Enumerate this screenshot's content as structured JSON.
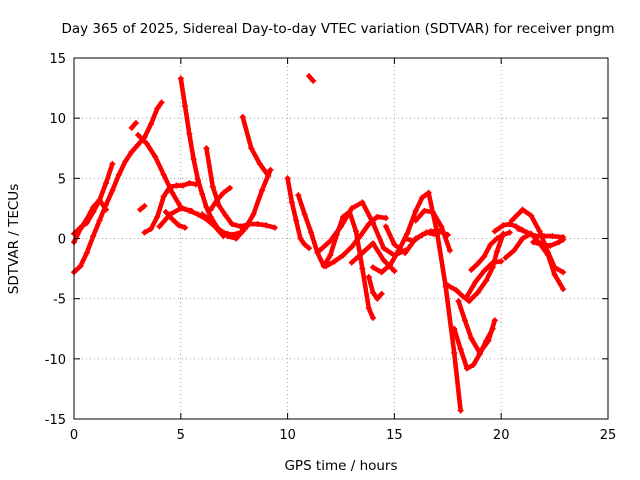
{
  "chart_data": {
    "type": "scatter",
    "title": "Day 365 of 2025, Sidereal Day-to-day VTEC variation (SDTVAR) for receiver pngm",
    "xlabel": "GPS time / hours",
    "ylabel": "SDTVAR / TECUs",
    "xlim": [
      0,
      25
    ],
    "ylim": [
      -15,
      15
    ],
    "xticks": [
      0,
      5,
      10,
      15,
      20,
      25
    ],
    "yticks": [
      -15,
      -10,
      -5,
      0,
      5,
      10,
      15
    ],
    "grid": true,
    "marker": "plus",
    "color": "#ff0000",
    "series": [
      {
        "x": [
          0.0,
          0.3,
          0.6,
          0.9,
          1.2,
          1.5,
          1.8,
          2.1,
          2.4,
          2.7,
          3.0,
          3.3,
          3.6,
          3.9,
          4.1
        ],
        "y": [
          -2.8,
          -2.3,
          -1.2,
          0.2,
          1.5,
          2.8,
          4.0,
          5.3,
          6.4,
          7.2,
          7.8,
          8.4,
          9.5,
          10.8,
          11.3
        ]
      },
      {
        "x": [
          0.0,
          0.3,
          0.6,
          0.9,
          1.2,
          1.5,
          1.8
        ],
        "y": [
          0.4,
          0.9,
          1.3,
          2.2,
          3.2,
          4.6,
          6.2
        ]
      },
      {
        "x": [
          0.0,
          0.3,
          0.6,
          0.9,
          1.2,
          1.5
        ],
        "y": [
          -0.3,
          0.8,
          1.6,
          2.6,
          3.2,
          2.4
        ]
      },
      {
        "x": [
          2.7,
          2.9
        ],
        "y": [
          9.2,
          9.6
        ]
      },
      {
        "x": [
          3.0,
          3.4,
          3.8,
          4.2,
          4.6,
          5.0,
          5.4,
          5.8,
          6.2,
          6.6,
          7.0
        ],
        "y": [
          8.6,
          7.9,
          6.8,
          5.3,
          3.8,
          2.6,
          2.3,
          2.0,
          1.6,
          1.0,
          0.2
        ]
      },
      {
        "x": [
          3.3,
          3.6,
          3.9,
          4.2,
          4.5,
          4.8,
          5.1,
          5.4,
          5.7
        ],
        "y": [
          0.5,
          0.8,
          1.8,
          3.5,
          4.3,
          4.4,
          4.4,
          4.6,
          4.5
        ]
      },
      {
        "x": [
          4.0,
          4.5,
          5.0,
          5.5
        ],
        "y": [
          1.0,
          2.0,
          2.5,
          2.3
        ]
      },
      {
        "x": [
          3.1,
          3.3
        ],
        "y": [
          2.4,
          2.7
        ]
      },
      {
        "x": [
          5.0,
          5.2,
          5.4,
          5.6,
          5.8,
          6.0,
          6.2,
          6.4,
          6.6,
          6.8
        ],
        "y": [
          13.3,
          11.0,
          8.7,
          6.6,
          4.9,
          3.7,
          2.6,
          1.8,
          1.2,
          0.7
        ]
      },
      {
        "x": [
          4.3,
          4.6,
          4.9,
          5.2
        ],
        "y": [
          2.2,
          1.6,
          1.1,
          0.9
        ]
      },
      {
        "x": [
          6.2,
          6.5,
          6.8,
          7.1,
          7.4,
          7.8,
          8.2,
          8.6,
          9.0,
          9.4
        ],
        "y": [
          7.5,
          4.3,
          2.7,
          1.9,
          1.2,
          1.0,
          1.2,
          1.2,
          1.1,
          0.9
        ]
      },
      {
        "x": [
          6.0,
          6.4,
          6.8,
          7.2,
          7.6,
          8.0,
          8.4,
          8.8,
          9.2
        ],
        "y": [
          2.0,
          1.5,
          0.6,
          0.2,
          0.0,
          0.8,
          2.0,
          4.0,
          5.7
        ]
      },
      {
        "x": [
          6.2,
          6.6,
          7.0,
          7.4,
          7.8,
          8.2
        ],
        "y": [
          1.7,
          1.0,
          0.5,
          0.3,
          0.5,
          1.2
        ]
      },
      {
        "x": [
          6.4,
          6.7,
          7.0,
          7.3
        ],
        "y": [
          2.4,
          3.2,
          3.8,
          4.2
        ]
      },
      {
        "x": [
          7.9,
          8.3,
          8.7,
          9.1
        ],
        "y": [
          10.1,
          7.5,
          6.2,
          5.2
        ]
      },
      {
        "x": [
          10.0,
          10.2,
          10.4,
          10.6,
          10.8,
          11.0
        ],
        "y": [
          5.0,
          3.0,
          1.5,
          0.0,
          -0.5,
          -0.8
        ]
      },
      {
        "x": [
          11.0,
          11.2
        ],
        "y": [
          13.5,
          13.1
        ]
      },
      {
        "x": [
          10.5,
          10.8,
          11.1,
          11.4,
          11.7,
          12.0,
          12.3,
          12.6,
          12.9,
          13.2,
          13.5,
          13.8,
          14.0
        ],
        "y": [
          3.6,
          2.0,
          0.5,
          -1.2,
          -2.3,
          -1.4,
          0.3,
          1.8,
          2.2,
          0.6,
          -2.5,
          -5.8,
          -6.6
        ]
      },
      {
        "x": [
          11.5,
          12.0,
          12.5,
          13.0,
          13.5,
          14.0,
          14.5,
          15.0,
          15.5
        ],
        "y": [
          -1.0,
          -0.2,
          1.0,
          2.5,
          3.0,
          1.3,
          -0.8,
          -1.4,
          -1.0
        ]
      },
      {
        "x": [
          11.8,
          12.2,
          12.6,
          13.0,
          13.4,
          13.8,
          14.2,
          14.6
        ],
        "y": [
          -2.3,
          -1.9,
          -1.4,
          -0.7,
          0.2,
          1.2,
          1.8,
          1.7
        ]
      },
      {
        "x": [
          13.0,
          13.5,
          14.0,
          14.5,
          15.0
        ],
        "y": [
          -2.0,
          -1.2,
          -0.4,
          -1.8,
          -2.7
        ]
      },
      {
        "x": [
          13.8,
          14.0,
          14.2,
          14.4
        ],
        "y": [
          -3.2,
          -4.5,
          -5.0,
          -4.6
        ]
      },
      {
        "x": [
          14.0,
          14.4,
          14.8,
          15.2,
          15.6,
          16.0,
          16.3,
          16.6,
          17.0,
          17.4,
          17.8,
          18.1
        ],
        "y": [
          -2.4,
          -2.8,
          -2.2,
          -1.0,
          0.4,
          2.3,
          3.4,
          3.8,
          0.5,
          -4.0,
          -9.5,
          -14.3
        ]
      },
      {
        "x": [
          14.6,
          15.0,
          15.5,
          16.0,
          16.5,
          17.0
        ],
        "y": [
          1.0,
          -0.5,
          -1.2,
          0.0,
          0.5,
          0.3
        ]
      },
      {
        "x": [
          15.5,
          15.9,
          16.3,
          16.7,
          17.1,
          17.5
        ],
        "y": [
          0.0,
          -0.2,
          0.3,
          0.6,
          0.6,
          0.3
        ]
      },
      {
        "x": [
          16.0,
          16.4,
          16.8,
          17.2,
          17.6
        ],
        "y": [
          1.5,
          2.3,
          2.2,
          1.0,
          -1.0
        ]
      },
      {
        "x": [
          17.5,
          17.9,
          18.2,
          18.5,
          18.9,
          19.3,
          19.6,
          19.8,
          20.1
        ],
        "y": [
          -3.9,
          -4.3,
          -4.8,
          -5.2,
          -4.5,
          -3.5,
          -2.4,
          -1.1,
          0.4
        ]
      },
      {
        "x": [
          17.8,
          18.1,
          18.4,
          18.7,
          19.0,
          19.3,
          19.6
        ],
        "y": [
          -7.5,
          -9.2,
          -10.8,
          -10.5,
          -9.6,
          -8.5,
          -7.5
        ]
      },
      {
        "x": [
          18.0,
          18.3,
          18.6,
          19.0,
          19.4,
          19.7
        ],
        "y": [
          -5.2,
          -6.8,
          -8.3,
          -9.5,
          -8.5,
          -6.8
        ]
      },
      {
        "x": [
          18.4,
          18.8,
          19.2,
          19.6,
          20.0
        ],
        "y": [
          -4.8,
          -3.6,
          -2.7,
          -2.0,
          -1.9
        ]
      },
      {
        "x": [
          18.6,
          18.9,
          19.2,
          19.5,
          19.8,
          20.1,
          20.4
        ],
        "y": [
          -2.6,
          -2.1,
          -1.5,
          -0.5,
          0.0,
          0.3,
          0.5
        ]
      },
      {
        "x": [
          19.7,
          20.1,
          20.4,
          20.7,
          21.0,
          21.3
        ],
        "y": [
          0.6,
          1.1,
          1.2,
          1.0,
          0.7,
          0.4
        ]
      },
      {
        "x": [
          20.5,
          21.0,
          21.4,
          21.8,
          22.2,
          22.5,
          22.9
        ],
        "y": [
          1.5,
          2.4,
          1.9,
          0.6,
          -1.2,
          -2.4,
          -2.8
        ]
      },
      {
        "x": [
          20.2,
          20.6,
          21.0,
          21.4,
          21.8,
          22.2,
          22.5,
          22.9
        ],
        "y": [
          -1.6,
          -1.0,
          0.0,
          0.4,
          -0.4,
          -1.4,
          -3.0,
          -4.2
        ]
      },
      {
        "x": [
          20.8,
          21.2,
          21.6,
          22.0,
          22.4,
          22.9
        ],
        "y": [
          0.8,
          0.5,
          0.2,
          0.2,
          0.2,
          0.1
        ]
      },
      {
        "x": [
          21.5,
          21.9,
          22.3,
          22.7,
          22.9
        ],
        "y": [
          -0.3,
          -0.5,
          -0.6,
          -0.3,
          -0.1
        ]
      }
    ]
  }
}
